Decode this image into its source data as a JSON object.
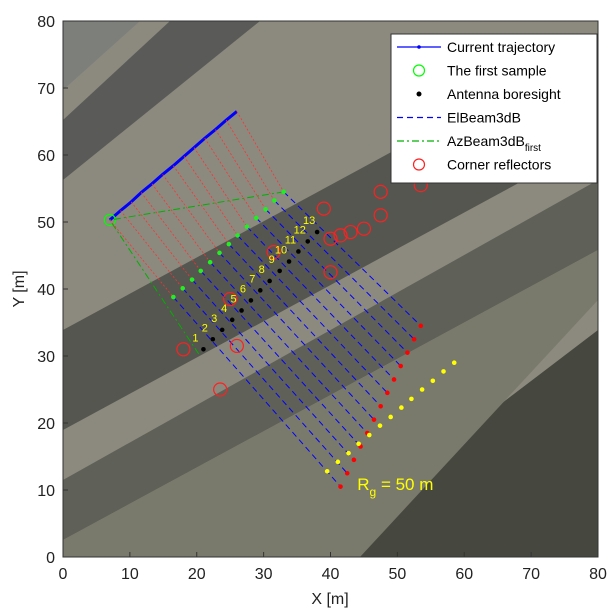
{
  "chart_data": {
    "type": "scatter",
    "xlabel": "X [m]",
    "ylabel": "Y [m]",
    "xlim": [
      0,
      80
    ],
    "ylim": [
      0,
      80
    ],
    "xticks": [
      0,
      10,
      20,
      30,
      40,
      50,
      60,
      70,
      80
    ],
    "yticks": [
      0,
      10,
      20,
      30,
      40,
      50,
      60,
      70,
      80
    ],
    "legend": "upper right",
    "point_labels": [
      "1",
      "2",
      "3",
      "4",
      "5",
      "6",
      "7",
      "8",
      "9",
      "10",
      "11",
      "12",
      "13"
    ],
    "annotation": {
      "text": "R",
      "subscript": "g",
      "suffix": " = 50 m",
      "x": 44,
      "y": 10
    },
    "series": [
      {
        "name": "Current trajectory",
        "color": "#0000ff",
        "style": "line-dot",
        "x": [
          7,
          8.6,
          10.2,
          11.7,
          13.3,
          14.9,
          16.5,
          18.1,
          19.6,
          21.2,
          22.8,
          24.4,
          26
        ],
        "y": [
          50.3,
          51.7,
          53,
          54.4,
          55.7,
          57.1,
          58.4,
          59.8,
          61.1,
          62.5,
          63.8,
          65.2,
          66.5
        ]
      },
      {
        "name": "The first sample",
        "color": "#00ff00",
        "style": "open-circle",
        "x": [
          7
        ],
        "y": [
          50.3
        ]
      },
      {
        "name": "Antenna boresight",
        "color": "#000000",
        "style": "dot",
        "x": [
          21,
          22.4,
          23.8,
          25.3,
          26.7,
          28.1,
          29.5,
          30.9,
          32.4,
          33.8,
          35.2,
          36.6,
          38
        ],
        "y": [
          31,
          32.5,
          33.9,
          35.4,
          36.8,
          38.3,
          39.8,
          41.2,
          42.7,
          44.1,
          45.6,
          47.1,
          48.5
        ]
      },
      {
        "name": "ElBeam3dB",
        "color": "#0000ff",
        "style": "dashed",
        "x": [
          16.5,
          41.5,
          null,
          17.9,
          42.5,
          null,
          19.3,
          43.5,
          null,
          20.6,
          44.5,
          null,
          22,
          45.5,
          null,
          23.4,
          46.5,
          null,
          24.8,
          47.5,
          null,
          26.1,
          48.5,
          null,
          27.5,
          49.5,
          null,
          28.9,
          50.5,
          null,
          30.3,
          51.5,
          null,
          31.6,
          52.5,
          null,
          33,
          53.5
        ],
        "y": [
          38.8,
          10.5,
          null,
          40.1,
          12.5,
          null,
          41.4,
          14.5,
          null,
          42.7,
          16.5,
          null,
          44,
          18.5,
          null,
          45.4,
          20.5,
          null,
          46.7,
          22.5,
          null,
          48,
          24.5,
          null,
          49.3,
          26.5,
          null,
          50.6,
          28.5,
          null,
          51.9,
          30.5,
          null,
          53.2,
          32.5,
          null,
          54.5,
          34.5
        ]
      },
      {
        "name": "AzBeam3dB",
        "subscript": "first",
        "color": "#00b000",
        "style": "dashdot",
        "x": [
          33,
          7,
          20.5
        ],
        "y": [
          54.5,
          50.3,
          30
        ]
      },
      {
        "name": "Corner reflectors",
        "color": "#ff2020",
        "style": "big-circle",
        "x": [
          18,
          23.5,
          25,
          26,
          31.5,
          39,
          40,
          40,
          41.5,
          43,
          45,
          47.5,
          47.5,
          53.5
        ],
        "y": [
          31,
          25,
          38.5,
          31.5,
          45.5,
          52,
          47.5,
          42.5,
          48,
          48.5,
          49,
          51,
          54.5,
          55.5
        ]
      },
      {
        "color": "#ff3030",
        "style": "dotted",
        "x": [
          7,
          16.5,
          null,
          8.6,
          17.9,
          null,
          10.2,
          19.3,
          null,
          11.7,
          20.6,
          null,
          13.3,
          22,
          null,
          14.9,
          23.4,
          null,
          16.5,
          24.8,
          null,
          18.1,
          26.1,
          null,
          19.6,
          27.5,
          null,
          21.2,
          28.9,
          null,
          22.8,
          30.3,
          null,
          24.4,
          31.6,
          null,
          26,
          33
        ],
        "y": [
          50.3,
          38.8,
          null,
          51.7,
          40.1,
          null,
          53,
          41.4,
          null,
          54.4,
          42.7,
          null,
          55.7,
          44,
          null,
          57.1,
          45.4,
          null,
          58.4,
          46.7,
          null,
          59.8,
          48,
          null,
          61.1,
          49.3,
          null,
          62.5,
          50.6,
          null,
          63.8,
          51.9,
          null,
          65.2,
          53.2,
          null,
          66.5,
          54.5
        ]
      },
      {
        "color": "#22ee22",
        "style": "dot",
        "x": [
          16.5,
          17.9,
          19.3,
          20.6,
          22,
          23.4,
          24.8,
          26.1,
          27.5,
          28.9,
          30.3,
          31.6,
          33
        ],
        "y": [
          38.8,
          40.1,
          41.4,
          42.7,
          44,
          45.4,
          46.7,
          48,
          49.3,
          50.6,
          51.9,
          53.2,
          54.5
        ]
      },
      {
        "color": "#ff0000",
        "style": "dot",
        "x": [
          41.5,
          42.5,
          43.5,
          44.5,
          45.5,
          46.5,
          47.5,
          48.5,
          49.5,
          50.5,
          51.5,
          52.5,
          53.5
        ],
        "y": [
          10.5,
          12.5,
          14.5,
          16.5,
          18.5,
          20.5,
          22.5,
          24.5,
          26.5,
          28.5,
          30.5,
          32.5,
          34.5
        ]
      },
      {
        "color": "#ffff00",
        "style": "dot",
        "x": [
          39.5,
          41.1,
          42.7,
          44.2,
          45.8,
          47.4,
          49,
          50.6,
          52.1,
          53.7,
          55.3,
          56.9,
          58.5
        ],
        "y": [
          12.8,
          14.2,
          15.5,
          16.9,
          18.2,
          19.6,
          20.9,
          22.3,
          23.6,
          25,
          26.3,
          27.7,
          29
        ]
      }
    ]
  }
}
